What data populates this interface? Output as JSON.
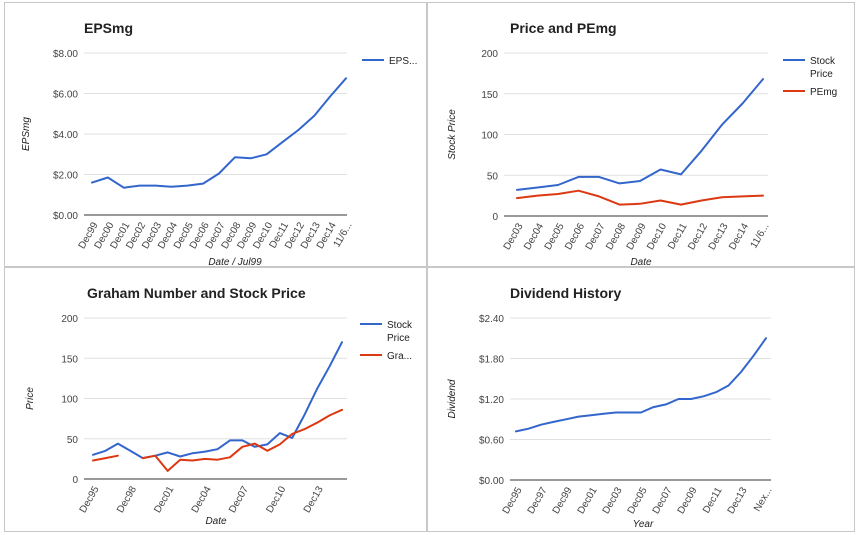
{
  "colors": {
    "blue": "#3366cc",
    "red": "#dc3912",
    "grid": "#e0e0e0",
    "axis": "#333333"
  },
  "chart_data": [
    {
      "type": "line",
      "title": "EPSmg",
      "xlabel": "Date / Jul99",
      "ylabel": "EPSmg",
      "ylim": [
        0,
        8
      ],
      "yticks": [
        "$0.00",
        "$2.00",
        "$4.00",
        "$6.00",
        "$8.00"
      ],
      "x_tick_labels": [
        "Dec99",
        "Dec00",
        "Dec01",
        "Dec02",
        "Dec03",
        "Dec04",
        "Dec05",
        "Dec06",
        "Dec07",
        "Dec08",
        "Dec09",
        "Dec10",
        "Dec11",
        "Dec12",
        "Dec13",
        "Dec14",
        "11/6..."
      ],
      "grid": true,
      "legend_position": "right",
      "series": [
        {
          "name": "EPS...",
          "color": "#3366cc",
          "values": [
            1.6,
            1.85,
            1.35,
            1.45,
            1.45,
            1.4,
            1.45,
            1.55,
            2.05,
            2.85,
            2.8,
            3.0,
            3.6,
            4.2,
            4.9,
            5.85,
            6.75
          ]
        }
      ]
    },
    {
      "type": "line",
      "title": "Price and PEmg",
      "xlabel": "Date",
      "ylabel": "Stock Price",
      "ylim": [
        0,
        200
      ],
      "yticks": [
        "0",
        "50",
        "100",
        "150",
        "200"
      ],
      "x_tick_labels": [
        "Dec03",
        "Dec04",
        "Dec05",
        "Dec06",
        "Dec07",
        "Dec08",
        "Dec09",
        "Dec10",
        "Dec11",
        "Dec12",
        "Dec13",
        "Dec14",
        "11/6..."
      ],
      "grid": true,
      "legend_position": "right",
      "series": [
        {
          "name": "Stock Price",
          "color": "#3366cc",
          "values": [
            32,
            35,
            38,
            48,
            48,
            40,
            43,
            57,
            51,
            80,
            112,
            138,
            168
          ]
        },
        {
          "name": "PEmg",
          "color": "#dc3912",
          "values": [
            22,
            25,
            27,
            31,
            24,
            14,
            15,
            19,
            14,
            19,
            23,
            24,
            25
          ]
        }
      ]
    },
    {
      "type": "line",
      "title": "Graham Number and Stock Price",
      "xlabel": "Date",
      "ylabel": "Price",
      "ylim": [
        0,
        200
      ],
      "yticks": [
        "0",
        "50",
        "100",
        "150",
        "200"
      ],
      "x_tick_labels": [
        "Dec95",
        "Dec98",
        "Dec01",
        "Dec04",
        "Dec07",
        "Dec10",
        "Dec13"
      ],
      "grid": true,
      "legend_position": "right",
      "series": [
        {
          "name": "Stock Price",
          "color": "#3366cc",
          "values": [
            30,
            35,
            44,
            35,
            26,
            29,
            33,
            28,
            32,
            34,
            37,
            48,
            48,
            40,
            43,
            57,
            51,
            80,
            112,
            140,
            170
          ]
        },
        {
          "name": "Gra...",
          "color": "#dc3912",
          "values": [
            23,
            26,
            29,
            null,
            26,
            29,
            10,
            24,
            23,
            25,
            24,
            27,
            40,
            44,
            35,
            43,
            56,
            62,
            70,
            79,
            86
          ]
        }
      ]
    },
    {
      "type": "line",
      "title": "Dividend History",
      "xlabel": "Year",
      "ylabel": "Dividend",
      "ylim": [
        0,
        2.4
      ],
      "yticks": [
        "$0.00",
        "$0.60",
        "$1.20",
        "$1.80",
        "$2.40"
      ],
      "x_tick_labels": [
        "Dec95",
        "Dec97",
        "Dec99",
        "Dec01",
        "Dec03",
        "Dec05",
        "Dec07",
        "Dec09",
        "Dec11",
        "Dec13",
        "Nex..."
      ],
      "grid": true,
      "legend_position": "none",
      "series": [
        {
          "name": "",
          "color": "#3366cc",
          "values": [
            0.72,
            0.76,
            0.82,
            0.86,
            0.9,
            0.94,
            0.96,
            0.98,
            1.0,
            1.0,
            1.0,
            1.08,
            1.12,
            1.2,
            1.2,
            1.24,
            1.3,
            1.4,
            1.6,
            1.84,
            2.1
          ]
        }
      ]
    }
  ]
}
